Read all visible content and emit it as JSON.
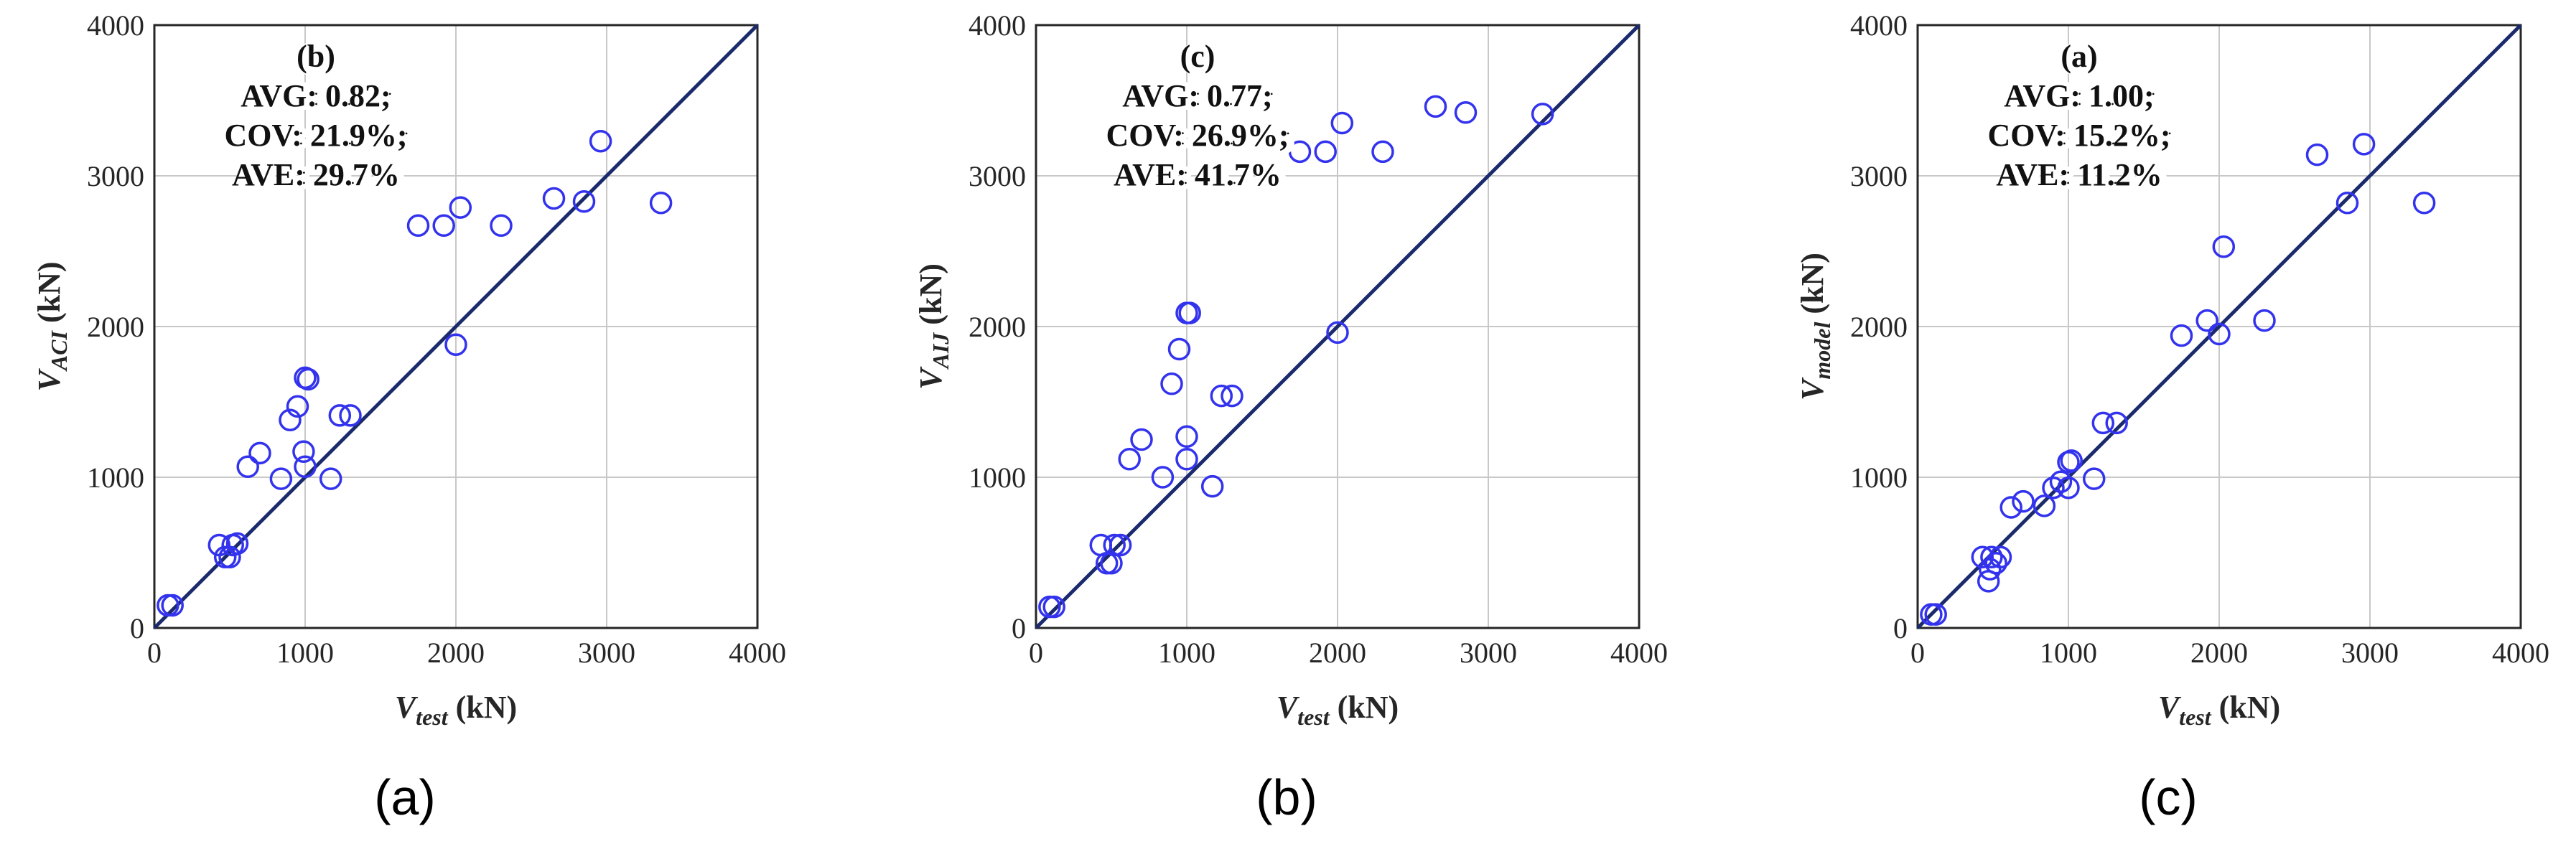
{
  "colors": {
    "marker": "#3333ee",
    "refline": "#1a2a6c",
    "grid": "#c8c8c8",
    "axis": "#262626"
  },
  "chart_data": [
    {
      "type": "scatter",
      "caption": "(a)",
      "ylabel_main": "V",
      "ylabel_sub": "ACI",
      "ylabel_unit": " (kN)",
      "xlabel_main": "V",
      "xlabel_sub": "test",
      "xlabel_unit": " (kN)",
      "xlim": [
        0,
        4000
      ],
      "ylim": [
        0,
        4000
      ],
      "xticks": [
        "0",
        "1000",
        "2000",
        "3000",
        "4000"
      ],
      "yticks": [
        "0",
        "1000",
        "2000",
        "3000",
        "4000"
      ],
      "grid": true,
      "reference_line": "y = x",
      "annotation": [
        "(b)",
        "AVG: 0.82;",
        "COV: 21.9%;",
        "AVE: 29.7%"
      ],
      "points": [
        [
          90,
          150
        ],
        [
          120,
          150
        ],
        [
          430,
          550
        ],
        [
          470,
          470
        ],
        [
          500,
          470
        ],
        [
          520,
          550
        ],
        [
          550,
          560
        ],
        [
          620,
          1070
        ],
        [
          700,
          1160
        ],
        [
          840,
          990
        ],
        [
          900,
          1380
        ],
        [
          950,
          1470
        ],
        [
          990,
          1170
        ],
        [
          1000,
          1070
        ],
        [
          1000,
          1660
        ],
        [
          1020,
          1650
        ],
        [
          1170,
          990
        ],
        [
          1230,
          1410
        ],
        [
          1300,
          1410
        ],
        [
          1750,
          2670
        ],
        [
          1920,
          2670
        ],
        [
          2000,
          1880
        ],
        [
          2030,
          2790
        ],
        [
          2300,
          2670
        ],
        [
          2650,
          2850
        ],
        [
          2850,
          2830
        ],
        [
          2960,
          3230
        ],
        [
          3360,
          2820
        ]
      ]
    },
    {
      "type": "scatter",
      "caption": "(b)",
      "ylabel_main": "V",
      "ylabel_sub": "AIJ",
      "ylabel_unit": " (kN)",
      "xlabel_main": "V",
      "xlabel_sub": "test",
      "xlabel_unit": " (kN)",
      "xlim": [
        0,
        4000
      ],
      "ylim": [
        0,
        4000
      ],
      "xticks": [
        "0",
        "1000",
        "2000",
        "3000",
        "4000"
      ],
      "yticks": [
        "0",
        "1000",
        "2000",
        "3000",
        "4000"
      ],
      "grid": true,
      "reference_line": "y = x",
      "annotation": [
        "(c)",
        "AVG: 0.77;",
        "COV: 26.9%;",
        "AVE: 41.7%"
      ],
      "points": [
        [
          90,
          140
        ],
        [
          120,
          140
        ],
        [
          430,
          550
        ],
        [
          470,
          430
        ],
        [
          500,
          430
        ],
        [
          520,
          550
        ],
        [
          560,
          550
        ],
        [
          620,
          1120
        ],
        [
          700,
          1250
        ],
        [
          840,
          1000
        ],
        [
          900,
          1620
        ],
        [
          950,
          1850
        ],
        [
          1000,
          1120
        ],
        [
          1000,
          1270
        ],
        [
          1000,
          2090
        ],
        [
          1020,
          2090
        ],
        [
          1170,
          940
        ],
        [
          1230,
          1540
        ],
        [
          1300,
          1540
        ],
        [
          1750,
          3160
        ],
        [
          1920,
          3160
        ],
        [
          2000,
          1960
        ],
        [
          2030,
          3350
        ],
        [
          2300,
          3160
        ],
        [
          2650,
          3460
        ],
        [
          2850,
          3420
        ],
        [
          3360,
          3410
        ]
      ]
    },
    {
      "type": "scatter",
      "caption": "(c)",
      "ylabel_main": "V",
      "ylabel_sub": "model",
      "ylabel_unit": " (kN)",
      "xlabel_main": "V",
      "xlabel_sub": "test",
      "xlabel_unit": " (kN)",
      "xlim": [
        0,
        4000
      ],
      "ylim": [
        0,
        4000
      ],
      "xticks": [
        "0",
        "1000",
        "2000",
        "3000",
        "4000"
      ],
      "yticks": [
        "0",
        "1000",
        "2000",
        "3000",
        "4000"
      ],
      "grid": true,
      "reference_line": "y = x",
      "annotation": [
        "(a)",
        "AVG: 1.00;",
        "COV: 15.2%;",
        "AVE: 11.2%"
      ],
      "points": [
        [
          90,
          90
        ],
        [
          120,
          90
        ],
        [
          430,
          470
        ],
        [
          470,
          310
        ],
        [
          480,
          390
        ],
        [
          490,
          470
        ],
        [
          520,
          430
        ],
        [
          550,
          470
        ],
        [
          620,
          800
        ],
        [
          700,
          840
        ],
        [
          840,
          810
        ],
        [
          900,
          930
        ],
        [
          950,
          970
        ],
        [
          1000,
          930
        ],
        [
          1000,
          1100
        ],
        [
          1020,
          1110
        ],
        [
          1170,
          990
        ],
        [
          1230,
          1360
        ],
        [
          1320,
          1360
        ],
        [
          1750,
          1940
        ],
        [
          1920,
          2040
        ],
        [
          2000,
          1950
        ],
        [
          2030,
          2530
        ],
        [
          2300,
          2040
        ],
        [
          2650,
          3140
        ],
        [
          2850,
          2820
        ],
        [
          2960,
          3210
        ],
        [
          3360,
          2820
        ]
      ]
    }
  ]
}
